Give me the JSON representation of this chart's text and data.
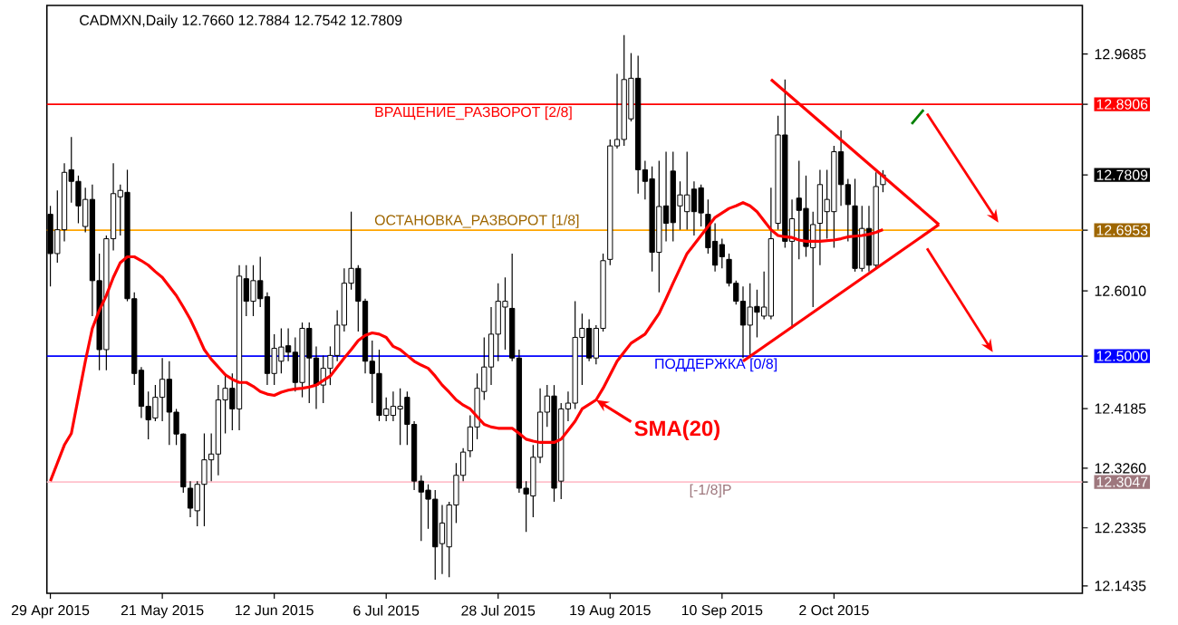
{
  "chart_data": {
    "type": "candlestick",
    "title": "CADMXN,Daily 12.7660 12.7884 12.7542 12.7809",
    "categories": [
      "29 Apr 2015",
      null,
      null,
      null,
      null,
      null,
      null,
      null,
      null,
      null,
      null,
      null,
      null,
      null,
      null,
      null,
      "21 May 2015",
      null,
      null,
      null,
      null,
      null,
      null,
      null,
      null,
      null,
      null,
      null,
      null,
      null,
      null,
      null,
      "12 Jun 2015",
      null,
      null,
      null,
      null,
      null,
      null,
      null,
      null,
      null,
      null,
      null,
      null,
      null,
      null,
      null,
      "6 Jul 2015",
      null,
      null,
      null,
      null,
      null,
      null,
      null,
      null,
      null,
      null,
      null,
      null,
      null,
      null,
      null,
      "28 Jul 2015",
      null,
      null,
      null,
      null,
      null,
      null,
      null,
      null,
      null,
      null,
      null,
      null,
      null,
      null,
      null,
      "19 Aug 2015",
      null,
      null,
      null,
      null,
      null,
      null,
      null,
      null,
      null,
      null,
      null,
      null,
      null,
      null,
      null,
      "10 Sep 2015",
      null,
      null,
      null,
      null,
      null,
      null,
      null,
      null,
      null,
      null,
      null,
      null,
      null,
      null,
      null,
      "2 Oct 2015",
      null,
      null,
      null,
      null,
      null,
      null,
      null,
      null,
      null,
      null,
      null,
      null,
      null,
      null,
      null,
      null,
      null,
      null,
      null,
      null,
      null,
      null,
      null,
      null,
      null,
      null,
      null,
      null,
      null,
      null,
      null,
      null,
      null,
      null,
      null
    ],
    "ohlc": [
      [
        12.72,
        12.733,
        12.608,
        12.659
      ],
      [
        12.659,
        12.757,
        12.645,
        12.696
      ],
      [
        12.696,
        12.799,
        12.678,
        12.785
      ],
      [
        12.789,
        12.84,
        12.738,
        12.771
      ],
      [
        12.771,
        12.78,
        12.706,
        12.733
      ],
      [
        12.701,
        12.761,
        12.692,
        12.743
      ],
      [
        12.743,
        12.766,
        12.562,
        12.617
      ],
      [
        12.617,
        12.659,
        12.478,
        12.51
      ],
      [
        12.51,
        12.687,
        12.478,
        12.682
      ],
      [
        12.682,
        12.799,
        12.664,
        12.752
      ],
      [
        12.747,
        12.766,
        12.687,
        12.757
      ],
      [
        12.754,
        12.789,
        12.585,
        12.589
      ],
      [
        12.589,
        12.599,
        12.455,
        12.473
      ],
      [
        12.478,
        12.483,
        12.404,
        12.422
      ],
      [
        12.422,
        12.445,
        12.371,
        12.401
      ],
      [
        12.404,
        12.455,
        12.399,
        12.436
      ],
      [
        12.436,
        12.497,
        12.399,
        12.464
      ],
      [
        12.464,
        12.492,
        12.362,
        12.413
      ],
      [
        12.413,
        12.418,
        12.362,
        12.379
      ],
      [
        12.379,
        12.38,
        12.288,
        12.297
      ],
      [
        12.295,
        12.306,
        12.25,
        12.264
      ],
      [
        12.26,
        12.306,
        12.236,
        12.301
      ],
      [
        12.301,
        12.38,
        12.236,
        12.339
      ],
      [
        12.339,
        12.38,
        12.306,
        12.348
      ],
      [
        12.348,
        12.455,
        12.315,
        12.432
      ],
      [
        12.432,
        12.473,
        12.38,
        12.45
      ],
      [
        12.45,
        12.473,
        12.385,
        12.418
      ],
      [
        12.418,
        12.641,
        12.385,
        12.624
      ],
      [
        12.62,
        12.641,
        12.562,
        12.585
      ],
      [
        12.585,
        12.641,
        12.562,
        12.617
      ],
      [
        12.617,
        12.654,
        12.576,
        12.589
      ],
      [
        12.592,
        12.599,
        12.455,
        12.473
      ],
      [
        12.473,
        12.534,
        12.455,
        12.512
      ],
      [
        12.492,
        12.543,
        12.473,
        12.514
      ],
      [
        12.516,
        12.543,
        12.492,
        12.506
      ],
      [
        12.506,
        12.529,
        12.445,
        12.459
      ],
      [
        12.459,
        12.552,
        12.436,
        12.543
      ],
      [
        12.543,
        12.552,
        12.427,
        12.497
      ],
      [
        12.497,
        12.515,
        12.418,
        12.455
      ],
      [
        12.455,
        12.501,
        12.427,
        12.481
      ],
      [
        12.481,
        12.515,
        12.455,
        12.501
      ],
      [
        12.501,
        12.571,
        12.492,
        12.548
      ],
      [
        12.548,
        12.636,
        12.538,
        12.613
      ],
      [
        12.613,
        12.724,
        12.603,
        12.636
      ],
      [
        12.636,
        12.641,
        12.538,
        12.585
      ],
      [
        12.585,
        12.589,
        12.473,
        12.492
      ],
      [
        12.492,
        12.524,
        12.427,
        12.473
      ],
      [
        12.473,
        12.51,
        12.399,
        12.408
      ],
      [
        12.408,
        12.436,
        12.399,
        12.418
      ],
      [
        12.408,
        12.445,
        12.399,
        12.422
      ],
      [
        12.418,
        12.45,
        12.362,
        12.422
      ],
      [
        12.436,
        12.445,
        12.362,
        12.394
      ],
      [
        12.394,
        12.399,
        12.292,
        12.306
      ],
      [
        12.306,
        12.315,
        12.213,
        12.289
      ],
      [
        12.292,
        12.301,
        12.232,
        12.278
      ],
      [
        12.278,
        12.292,
        12.153,
        12.204
      ],
      [
        12.209,
        12.269,
        12.162,
        12.241
      ],
      [
        12.204,
        12.274,
        12.157,
        12.269
      ],
      [
        12.269,
        12.334,
        12.241,
        12.315
      ],
      [
        12.315,
        12.357,
        12.306,
        12.351
      ],
      [
        12.353,
        12.408,
        12.343,
        12.39
      ],
      [
        12.39,
        12.473,
        12.371,
        12.45
      ],
      [
        12.445,
        12.529,
        12.432,
        12.483
      ],
      [
        12.483,
        12.576,
        12.455,
        12.534
      ],
      [
        12.534,
        12.613,
        12.492,
        12.585
      ],
      [
        12.576,
        12.622,
        12.51,
        12.585
      ],
      [
        12.574,
        12.659,
        12.492,
        12.497
      ],
      [
        12.497,
        12.51,
        12.288,
        12.295
      ],
      [
        12.295,
        12.306,
        12.227,
        12.286
      ],
      [
        12.283,
        12.362,
        12.25,
        12.343
      ],
      [
        12.343,
        12.45,
        12.334,
        12.413
      ],
      [
        12.413,
        12.455,
        12.39,
        12.438
      ],
      [
        12.438,
        12.455,
        12.274,
        12.295
      ],
      [
        12.306,
        12.427,
        12.278,
        12.418
      ],
      [
        12.418,
        12.445,
        12.399,
        12.427
      ],
      [
        12.427,
        12.585,
        12.418,
        12.529
      ],
      [
        12.529,
        12.566,
        12.455,
        12.543
      ],
      [
        12.543,
        12.557,
        12.492,
        12.497
      ],
      [
        12.497,
        12.548,
        12.487,
        12.543
      ],
      [
        12.543,
        12.659,
        12.538,
        12.648
      ],
      [
        12.65,
        12.836,
        12.641,
        12.826
      ],
      [
        12.826,
        12.938,
        12.822,
        12.836
      ],
      [
        12.836,
        12.998,
        12.826,
        12.929
      ],
      [
        12.868,
        12.97,
        12.864,
        12.931
      ],
      [
        12.931,
        12.966,
        12.752,
        12.789
      ],
      [
        12.789,
        12.803,
        12.743,
        12.771
      ],
      [
        12.775,
        12.794,
        12.631,
        12.661
      ],
      [
        12.661,
        12.803,
        12.599,
        12.732
      ],
      [
        12.733,
        12.817,
        12.678,
        12.706
      ],
      [
        12.787,
        12.817,
        12.678,
        12.707
      ],
      [
        12.733,
        12.771,
        12.696,
        12.75
      ],
      [
        12.724,
        12.817,
        12.696,
        12.75
      ],
      [
        12.759,
        12.771,
        12.687,
        12.724
      ],
      [
        12.761,
        12.766,
        12.701,
        12.722
      ],
      [
        12.72,
        12.743,
        12.659,
        12.668
      ],
      [
        12.678,
        12.706,
        12.631,
        12.641
      ],
      [
        12.673,
        12.682,
        12.636,
        12.654
      ],
      [
        12.65,
        12.659,
        12.608,
        12.613
      ],
      [
        12.613,
        12.617,
        12.58,
        12.585
      ],
      [
        12.585,
        12.608,
        12.497,
        12.548
      ],
      [
        12.548,
        12.613,
        12.497,
        12.576
      ],
      [
        12.577,
        12.603,
        12.529,
        12.568
      ],
      [
        12.562,
        12.631,
        12.557,
        12.576
      ],
      [
        12.562,
        12.761,
        12.557,
        12.682
      ],
      [
        12.706,
        12.873,
        12.696,
        12.843
      ],
      [
        12.843,
        12.929,
        12.668,
        12.678
      ],
      [
        12.678,
        12.743,
        12.543,
        12.713
      ],
      [
        12.745,
        12.803,
        12.65,
        12.726
      ],
      [
        12.729,
        12.78,
        12.654,
        12.67
      ],
      [
        12.668,
        12.724,
        12.576,
        12.704
      ],
      [
        12.706,
        12.789,
        12.641,
        12.766
      ],
      [
        12.724,
        12.789,
        12.682,
        12.743
      ],
      [
        12.724,
        12.826,
        12.668,
        12.817
      ],
      [
        12.817,
        12.85,
        12.733,
        12.766
      ],
      [
        12.766,
        12.775,
        12.678,
        12.735
      ],
      [
        12.733,
        12.775,
        12.631,
        12.636
      ],
      [
        12.636,
        12.733,
        12.631,
        12.698
      ],
      [
        12.698,
        12.733,
        12.631,
        12.641
      ],
      [
        12.641,
        12.785,
        12.636,
        12.763
      ],
      [
        12.766,
        12.7884,
        12.7542,
        12.7809
      ],
      null,
      null,
      null,
      null,
      null,
      null,
      null,
      null,
      null,
      null,
      null,
      null,
      null,
      null,
      null,
      null,
      null,
      null,
      null,
      null,
      null,
      null,
      null,
      null,
      null,
      null,
      null,
      null
    ],
    "series": [
      {
        "name": "SMA(20)",
        "type": "line",
        "color": "#ff0000",
        "values": [
          12.306,
          12.334,
          12.362,
          12.38,
          12.436,
          12.492,
          12.543,
          12.571,
          12.594,
          12.622,
          12.645,
          12.654,
          12.654,
          12.648,
          12.641,
          12.631,
          12.622,
          12.608,
          12.594,
          12.576,
          12.557,
          12.534,
          12.51,
          12.495,
          12.483,
          12.471,
          12.464,
          12.459,
          12.459,
          12.453,
          12.445,
          12.441,
          12.439,
          12.444,
          12.447,
          12.449,
          12.45,
          12.452,
          12.455,
          12.462,
          12.469,
          12.483,
          12.497,
          12.51,
          12.524,
          12.532,
          12.536,
          12.534,
          12.529,
          12.515,
          12.51,
          12.501,
          12.492,
          12.486,
          12.481,
          12.469,
          12.455,
          12.444,
          12.432,
          12.424,
          12.418,
          12.406,
          12.394,
          12.39,
          12.388,
          12.388,
          12.388,
          12.38,
          12.371,
          12.368,
          12.366,
          12.366,
          12.366,
          12.371,
          12.385,
          12.399,
          12.418,
          12.425,
          12.432,
          12.45,
          12.471,
          12.492,
          12.506,
          12.52,
          12.527,
          12.534,
          12.55,
          12.566,
          12.589,
          12.613,
          12.636,
          12.659,
          12.673,
          12.687,
          12.701,
          12.715,
          12.722,
          12.729,
          12.733,
          12.738,
          12.733,
          12.724,
          12.71,
          12.696,
          12.687,
          12.685,
          12.684,
          12.68,
          12.678,
          12.678,
          12.678,
          12.679,
          12.68,
          12.682,
          12.685,
          12.686,
          12.687,
          12.689,
          12.692,
          12.696,
          null,
          null,
          null,
          null,
          null,
          null,
          null,
          null,
          null,
          null,
          null,
          null,
          null,
          null,
          null,
          null,
          null,
          null,
          null,
          null,
          null,
          null,
          null,
          null,
          null,
          null,
          null,
          null
        ]
      },
      {
        "type": "line",
        "color": "#ff0000",
        "values": [
          null,
          null,
          null,
          null,
          null,
          null,
          null,
          null,
          null,
          null,
          null,
          null,
          null,
          null,
          null,
          null,
          null,
          null,
          null,
          null,
          null,
          null,
          null,
          null,
          null,
          null,
          null,
          null,
          null,
          null,
          null,
          null,
          null,
          null,
          null,
          null,
          null,
          null,
          null,
          null,
          null,
          null,
          null,
          null,
          null,
          null,
          null,
          null,
          null,
          null,
          null,
          null,
          null,
          null,
          null,
          null,
          null,
          null,
          null,
          null,
          null,
          null,
          null,
          null,
          null,
          null,
          null,
          null,
          null,
          null,
          null,
          null,
          null,
          null,
          null,
          null,
          null,
          null,
          null,
          null,
          null,
          null,
          null,
          null,
          null,
          null,
          null,
          null,
          null,
          null,
          null,
          null,
          null,
          null,
          null,
          null,
          null,
          null,
          null,
          null,
          null,
          null,
          null,
          12.929,
          null,
          null,
          null,
          null,
          null,
          null,
          null,
          null,
          null,
          null,
          null,
          null,
          null,
          null,
          null,
          null,
          null,
          null,
          null,
          null,
          null,
          null,
          null,
          12.704,
          null,
          null,
          null,
          null,
          null,
          null,
          null,
          null,
          null,
          null,
          null,
          null,
          null,
          null,
          null,
          null,
          null,
          null,
          null,
          null
        ]
      },
      {
        "type": "line",
        "color": "#ff0000",
        "values": [
          null,
          null,
          null,
          null,
          null,
          null,
          null,
          null,
          null,
          null,
          null,
          null,
          null,
          null,
          null,
          null,
          null,
          null,
          null,
          null,
          null,
          null,
          null,
          null,
          null,
          null,
          null,
          null,
          null,
          null,
          null,
          null,
          null,
          null,
          null,
          null,
          null,
          null,
          null,
          null,
          null,
          null,
          null,
          null,
          null,
          null,
          null,
          null,
          null,
          null,
          null,
          null,
          null,
          null,
          null,
          null,
          null,
          null,
          null,
          null,
          null,
          null,
          null,
          null,
          null,
          null,
          null,
          null,
          null,
          null,
          null,
          null,
          null,
          null,
          null,
          null,
          null,
          null,
          null,
          null,
          null,
          null,
          null,
          null,
          null,
          null,
          null,
          null,
          null,
          null,
          null,
          null,
          null,
          null,
          null,
          null,
          null,
          null,
          null,
          12.492,
          null,
          null,
          null,
          null,
          null,
          null,
          null,
          null,
          null,
          null,
          null,
          null,
          null,
          null,
          null,
          null,
          null,
          null,
          null,
          null,
          null,
          null,
          null,
          null,
          null,
          null,
          null,
          12.704,
          null,
          null,
          null,
          null,
          null,
          null,
          null,
          null,
          null,
          null,
          null,
          null,
          null,
          null,
          null,
          null,
          null,
          null,
          null,
          null
        ]
      }
    ],
    "ylim": [
      12.132,
      13.044
    ],
    "yticks": [
      {
        "value": 12.1435,
        "label": "12.1435"
      },
      {
        "value": 12.2335,
        "label": "12.2335"
      },
      {
        "value": 12.3047,
        "label": "12.3047"
      },
      {
        "value": 12.326,
        "label": "12.3260"
      },
      {
        "value": 12.4185,
        "label": "12.4185"
      },
      {
        "value": 12.5,
        "label": "12.5000"
      },
      {
        "value": 12.601,
        "label": "12.6010"
      },
      {
        "value": 12.6953,
        "label": "12.6953"
      },
      {
        "value": 12.7809,
        "label": "12.7809"
      },
      {
        "value": 12.8906,
        "label": "12.8906"
      },
      {
        "value": 12.9685,
        "label": "12.9685"
      }
    ],
    "ref_lines": [
      {
        "axis": "y",
        "value": 12.8906,
        "label": "ВРАЩЕНИЕ_РАЗВОРОТ [2/8]",
        "color": "#ff0000"
      },
      {
        "axis": "y",
        "value": 12.6953,
        "label": "ОСТАНОВКА_РАЗВОРОТ [1/8]",
        "color": "#ffa500"
      },
      {
        "axis": "y",
        "value": 12.5,
        "label": "ПОДДЕРЖКА [0/8]",
        "color": "#0000ff"
      },
      {
        "axis": "y",
        "value": 12.3047,
        "label": "[-1/8]P",
        "color": "#ffc0cb"
      }
    ]
  }
}
